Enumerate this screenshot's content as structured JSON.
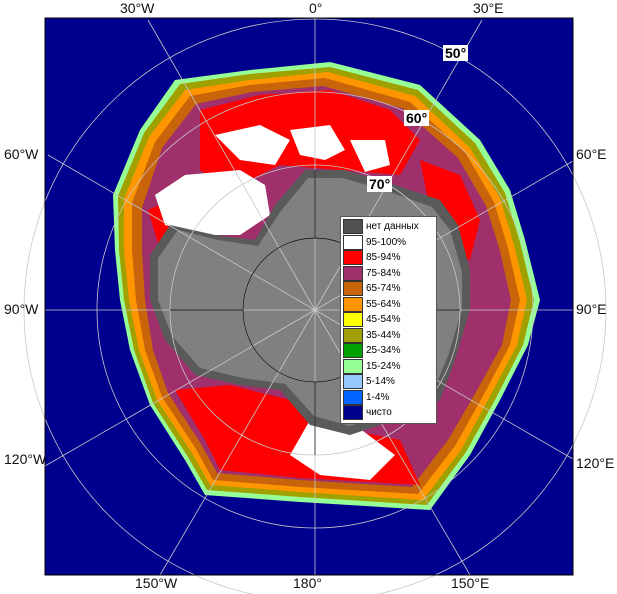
{
  "map": {
    "colors": {
      "ocean": "#00008f",
      "land": "#808080",
      "shelf": "#5a5a5a",
      "grid": "#c8c8c8"
    },
    "longitude_labels": {
      "top": [
        "30°W",
        "0°",
        "30°E"
      ],
      "left": [
        "60°W",
        "90°W",
        "120°W"
      ],
      "right": [
        "60°E",
        "90°E",
        "120°E"
      ],
      "bottom": [
        "150°W",
        "180°",
        "150°E"
      ]
    },
    "latitude_labels": [
      "50°",
      "60°",
      "70°"
    ]
  },
  "legend": {
    "items": [
      {
        "label": "нет данных",
        "color": "#505050"
      },
      {
        "label": "95-100%",
        "color": "#ffffff"
      },
      {
        "label": "85-94%",
        "color": "#ff0000"
      },
      {
        "label": "75-84%",
        "color": "#a0306c"
      },
      {
        "label": "65-74%",
        "color": "#c8640a"
      },
      {
        "label": "55-64%",
        "color": "#ff9600"
      },
      {
        "label": "45-54%",
        "color": "#ffff00"
      },
      {
        "label": "35-44%",
        "color": "#a0a000"
      },
      {
        "label": "25-34%",
        "color": "#00a000"
      },
      {
        "label": "15-24%",
        "color": "#96ff96"
      },
      {
        "label": "5-14%",
        "color": "#96c8ff"
      },
      {
        "label": "1-4%",
        "color": "#0064ff"
      },
      {
        "label": "чисто",
        "color": "#00008f"
      }
    ]
  }
}
